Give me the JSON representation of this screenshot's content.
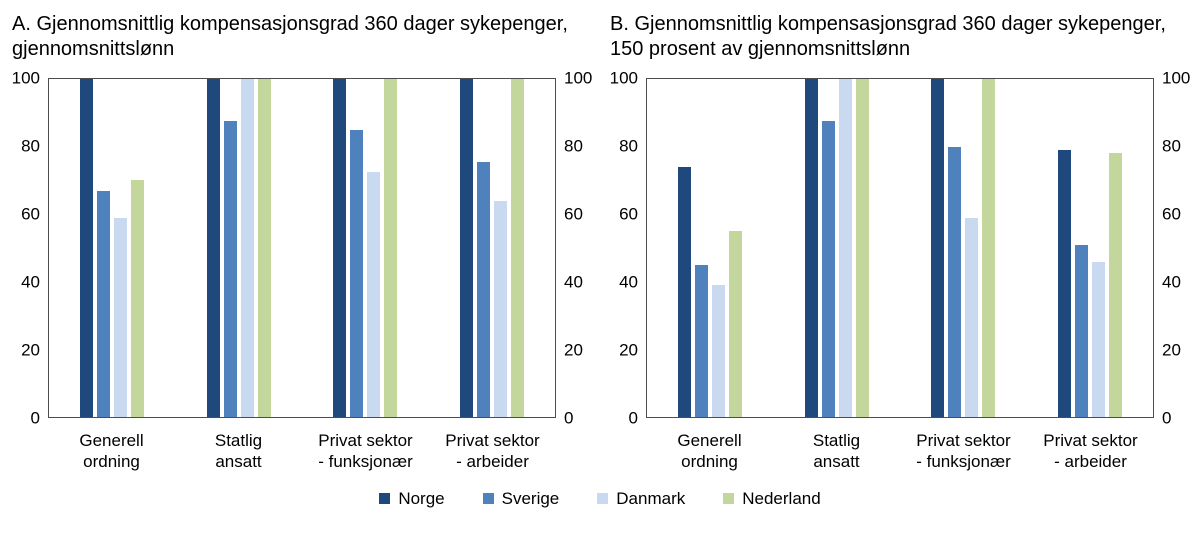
{
  "colors": {
    "Norge": "#1F497D",
    "Sverige": "#4F81BD",
    "Danmark": "#C9D9F0",
    "Nederland": "#C3D69B"
  },
  "legend": {
    "items": [
      "Norge",
      "Sverige",
      "Danmark",
      "Nederland"
    ]
  },
  "chart_data": [
    {
      "type": "bar",
      "title": "A. Gjennomsnittlig kompensasjonsgrad 360 dager sykepenger, gjennomsnittslønn",
      "categories": [
        "Generell\nordning",
        "Statlig\nansatt",
        "Privat sektor\n- funksjonær",
        "Privat sektor\n- arbeider"
      ],
      "series": [
        {
          "name": "Norge",
          "values": [
            100,
            100,
            100,
            100
          ]
        },
        {
          "name": "Sverige",
          "values": [
            67,
            87.5,
            85,
            75.5
          ]
        },
        {
          "name": "Danmark",
          "values": [
            59,
            100,
            72.5,
            64
          ]
        },
        {
          "name": "Nederland",
          "values": [
            70,
            100,
            100,
            100
          ]
        }
      ],
      "ylim": [
        0,
        100
      ],
      "yticks": [
        0,
        20,
        40,
        60,
        80,
        100
      ],
      "grid": false,
      "legend_position": "bottom"
    },
    {
      "type": "bar",
      "title": "B. Gjennomsnittlig kompensasjonsgrad 360 dager sykepenger, 150 prosent av gjennomsnittslønn",
      "categories": [
        "Generell\nordning",
        "Statlig\nansatt",
        "Privat sektor\n- funksjonær",
        "Privat sektor\n- arbeider"
      ],
      "series": [
        {
          "name": "Norge",
          "values": [
            74,
            100,
            100,
            79
          ]
        },
        {
          "name": "Sverige",
          "values": [
            45,
            87.5,
            80,
            51
          ]
        },
        {
          "name": "Danmark",
          "values": [
            39,
            100,
            59,
            46
          ]
        },
        {
          "name": "Nederland",
          "values": [
            55,
            100,
            100,
            78
          ]
        }
      ],
      "ylim": [
        0,
        100
      ],
      "yticks": [
        0,
        20,
        40,
        60,
        80,
        100
      ],
      "grid": false,
      "legend_position": "bottom"
    }
  ]
}
